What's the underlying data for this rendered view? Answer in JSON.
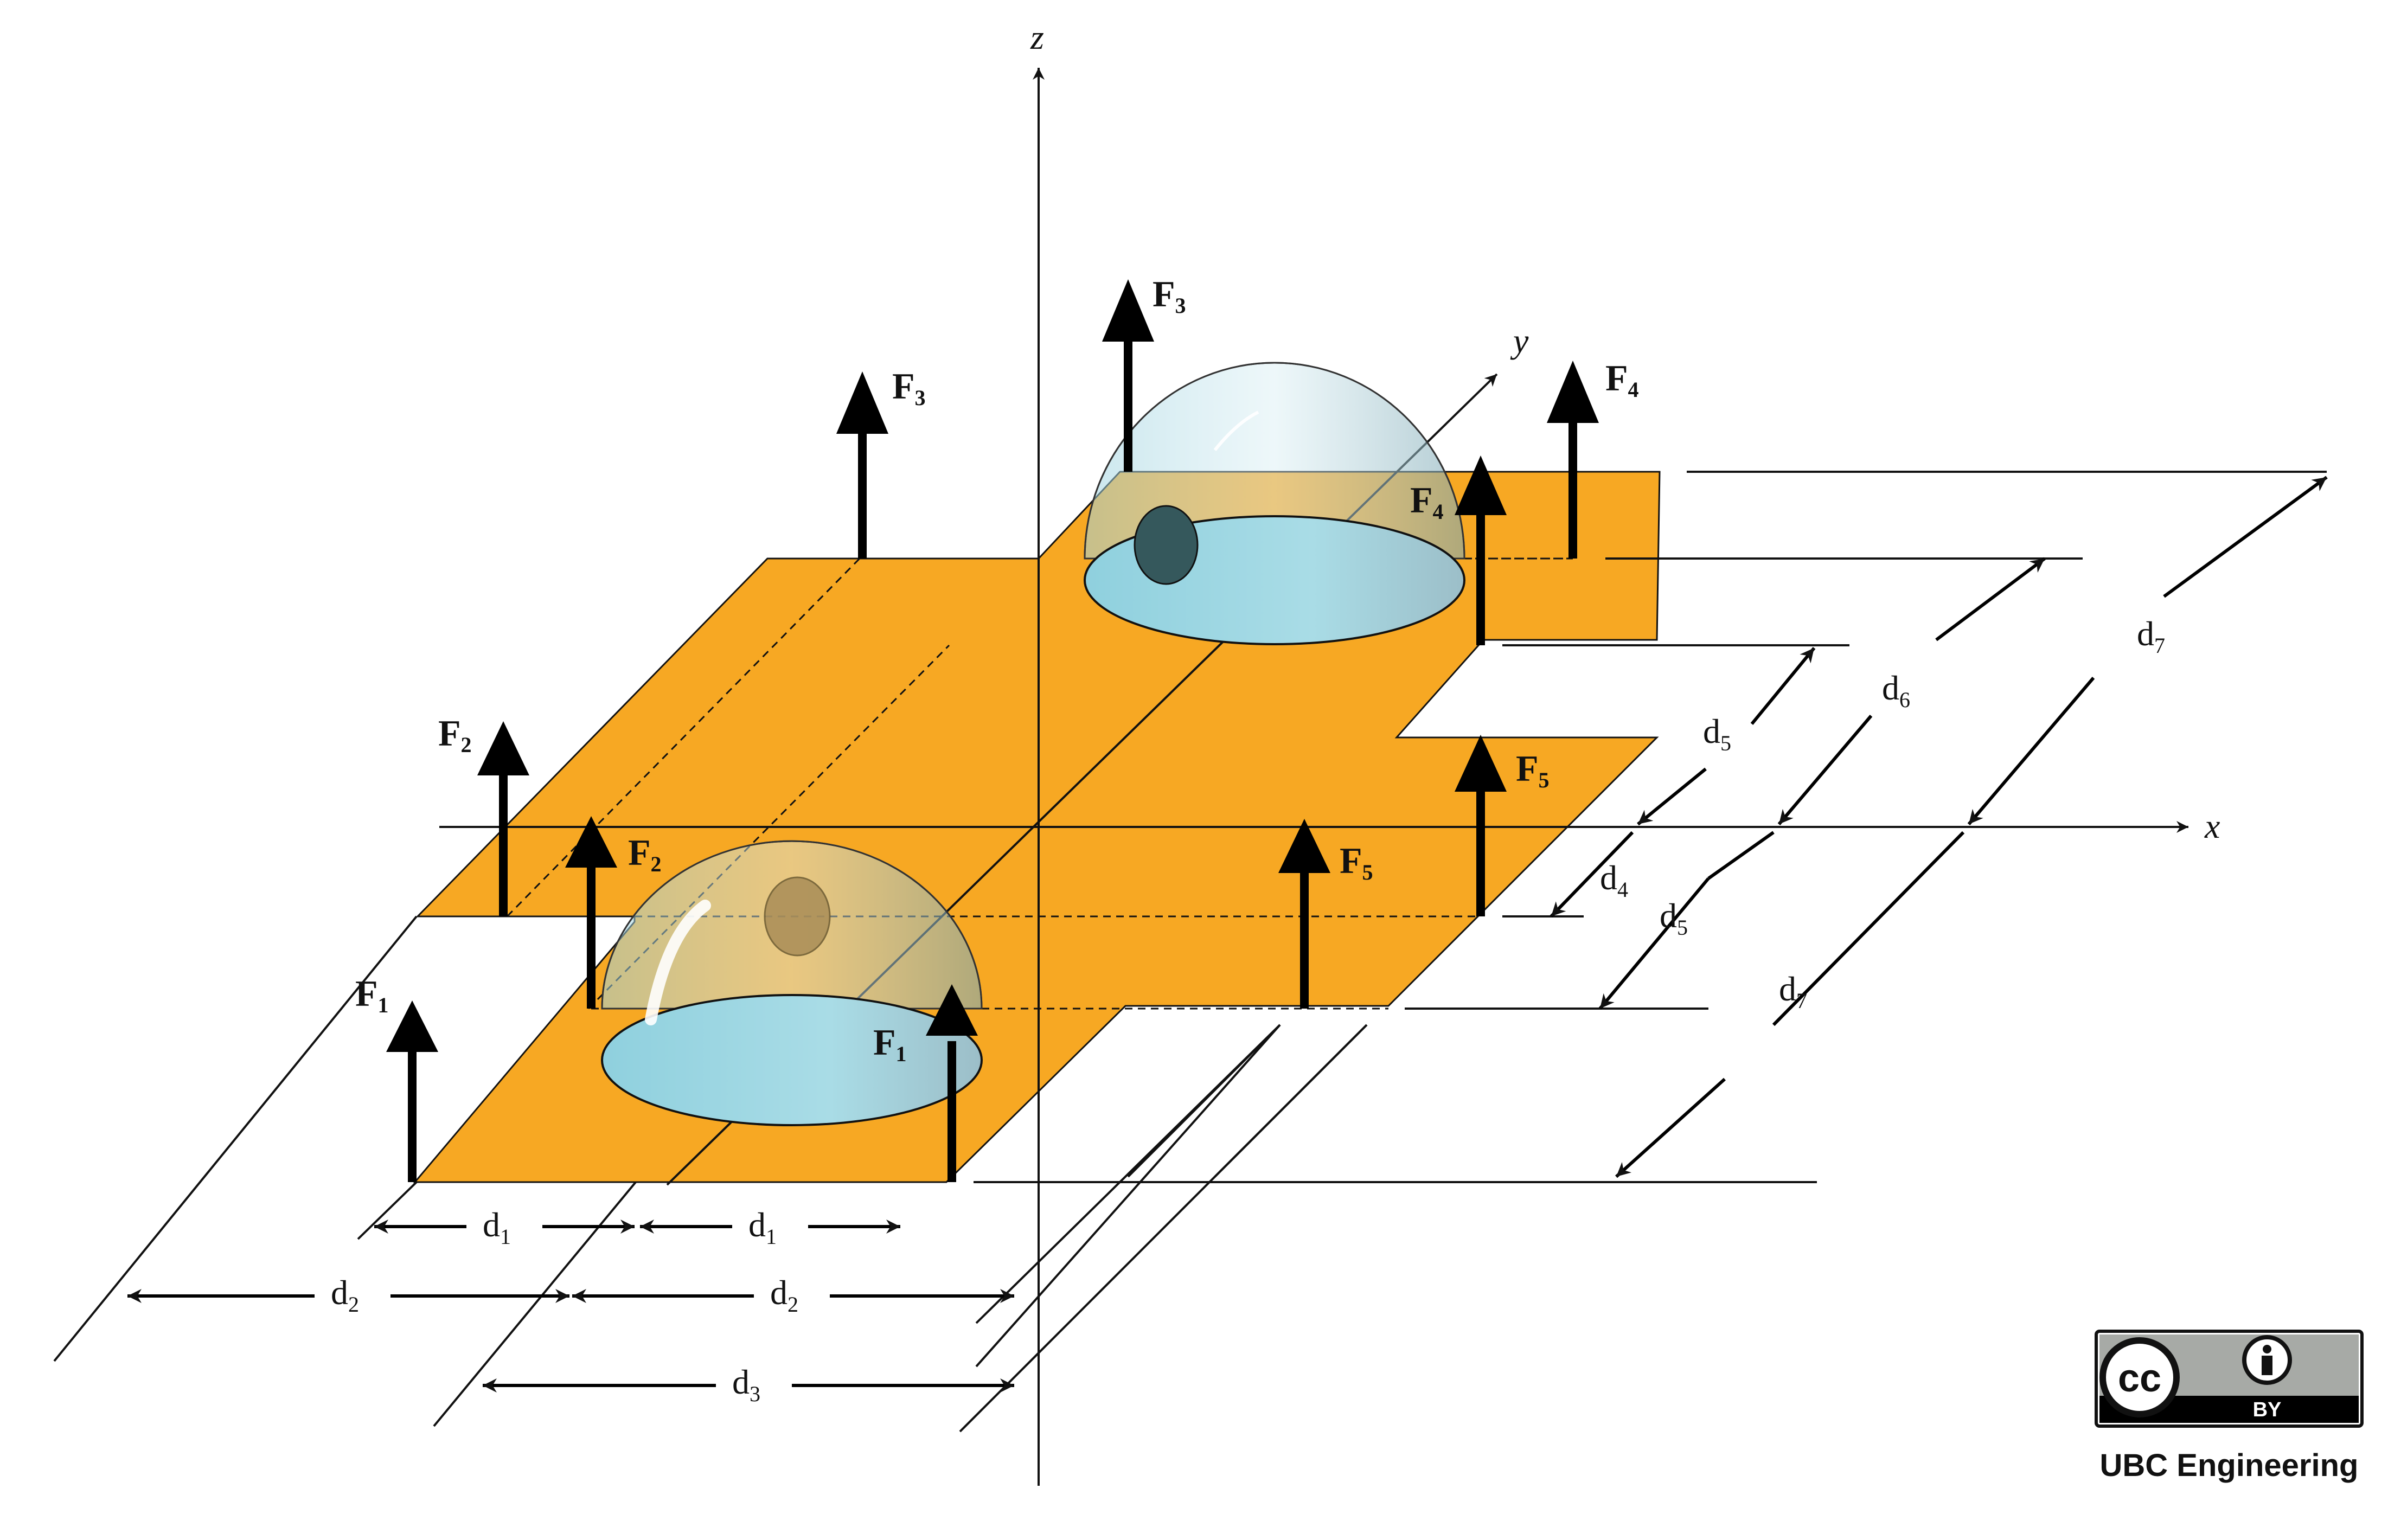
{
  "axes": {
    "x": "x",
    "y": "y",
    "z": "z"
  },
  "forces": {
    "f1": "F",
    "f1_sub": "1",
    "f2": "F",
    "f2_sub": "2",
    "f3": "F",
    "f3_sub": "3",
    "f4": "F",
    "f4_sub": "4",
    "f5": "F",
    "f5_sub": "5"
  },
  "dimensions": {
    "d1": "d",
    "d1_sub": "1",
    "d2": "d",
    "d2_sub": "2",
    "d3": "d",
    "d3_sub": "3",
    "d4": "d",
    "d4_sub": "4",
    "d5": "d",
    "d5_sub": "5",
    "d6": "d",
    "d6_sub": "6",
    "d7": "d",
    "d7_sub": "7"
  },
  "license": {
    "cc": "cc",
    "by": "BY",
    "publisher": "UBC Engineering"
  },
  "colors": {
    "plate": "#F7A823",
    "dome": "#A8DCE6",
    "ink": "#111111"
  }
}
